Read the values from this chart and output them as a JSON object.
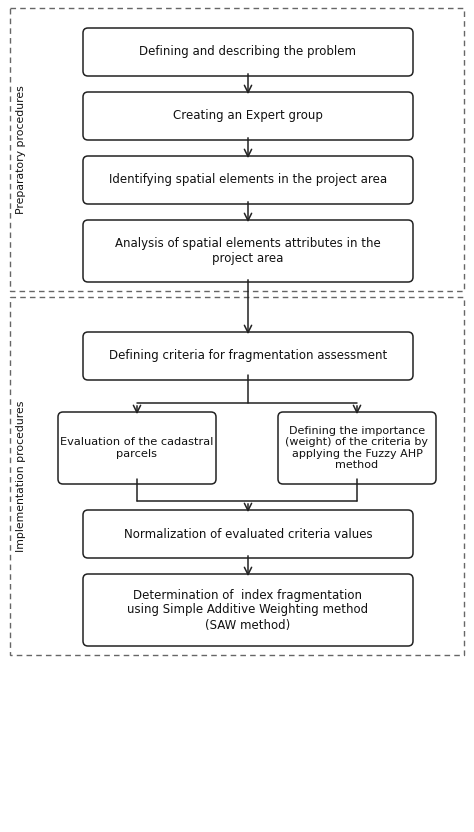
{
  "bg_color": "#ffffff",
  "box_color": "#ffffff",
  "box_edge_color": "#222222",
  "dashed_border_color": "#666666",
  "arrow_color": "#222222",
  "text_color": "#111111",
  "label_color": "#111111",
  "prep_label": "Preparatory procedures",
  "impl_label": "Implementation procedures",
  "prep_boxes": [
    "Defining and describing the problem",
    "Creating an Expert group",
    "Identifying spatial elements in the project area",
    "Analysis of spatial elements attributes in the\nproject area"
  ],
  "impl_boxes_top": "Defining criteria for fragmentation assessment",
  "impl_box_left": "Evaluation of the cadastral\nparcels",
  "impl_box_right": "Defining the importance\n(weight) of the criteria by\napplying the Fuzzy AHP\nmethod",
  "impl_box_norm": "Normalization of evaluated criteria values",
  "impl_box_final": "Determination of  index fragmentation\nusing Simple Additive Weighting method\n(SAW method)",
  "figsize": [
    4.74,
    8.32
  ],
  "dpi": 100
}
